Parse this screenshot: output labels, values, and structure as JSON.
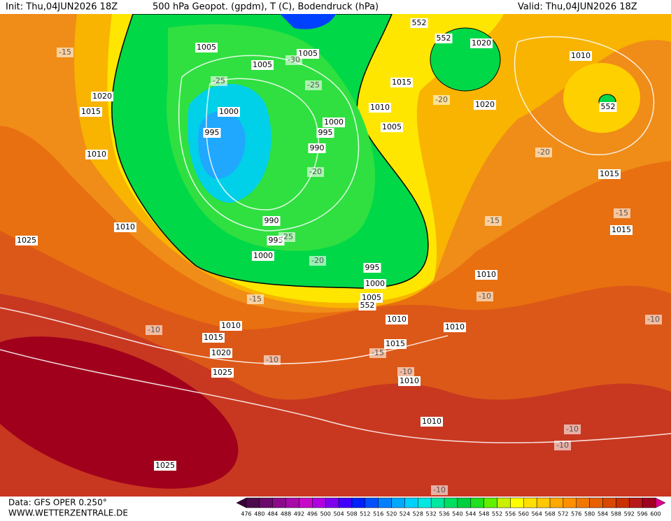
{
  "header": {
    "init": "Init: Thu,04JUN2026 18Z",
    "title": "500 hPa Geopot. (gpdm), T (C), Bodendruck (hPa)",
    "valid": "Valid: Thu,04JUN2026 18Z"
  },
  "footer": {
    "data": "Data: GFS OPER 0.250°",
    "site": "WWW.WETTERZENTRALE.DE"
  },
  "scale": {
    "labels": [
      476,
      480,
      484,
      488,
      492,
      496,
      500,
      504,
      508,
      512,
      516,
      520,
      524,
      528,
      532,
      536,
      540,
      544,
      548,
      552,
      556,
      560,
      564,
      568,
      572,
      576,
      580,
      584,
      588,
      592,
      596,
      600
    ],
    "colors": [
      "#4b0b4b",
      "#6a0a6a",
      "#8a0a8a",
      "#a80aa8",
      "#c80ac8",
      "#b000e0",
      "#8000f0",
      "#4000ff",
      "#0020ff",
      "#0050ff",
      "#0080ff",
      "#00a8ff",
      "#00d0ff",
      "#00e8e0",
      "#00e8a0",
      "#00e060",
      "#00d040",
      "#20e020",
      "#60f000",
      "#c8f000",
      "#ffff00",
      "#ffe000",
      "#ffc800",
      "#ffa800",
      "#ff9000",
      "#f07800",
      "#e86000",
      "#d84800",
      "#c83000",
      "#b81818",
      "#a00020"
    ],
    "low_color": "#3a003a",
    "high_color": "#e0008c"
  },
  "pressure_labels": [
    "1005",
    "1005",
    "1005",
    "1000",
    "995",
    "1000",
    "995",
    "990",
    "990",
    "995",
    "1000",
    "995",
    "1000",
    "1005",
    "1010",
    "1010",
    "1010",
    "1015",
    "1010",
    "1005",
    "1020",
    "1020",
    "1010",
    "1015",
    "1015",
    "1020",
    "1015",
    "1010",
    "1010",
    "1025",
    "1010",
    "1015",
    "1020",
    "1025",
    "1015",
    "1010",
    "1010",
    "1025",
    "552",
    "552",
    "552",
    "552"
  ],
  "temperature_labels": [
    "-15",
    "-25",
    "-30",
    "-25",
    "-20",
    "-20",
    "-20",
    "-25",
    "-20",
    "-15",
    "-15",
    "-15",
    "-10",
    "-10",
    "-15",
    "-10",
    "-10",
    "-10",
    "-10",
    "-10",
    "-10"
  ]
}
